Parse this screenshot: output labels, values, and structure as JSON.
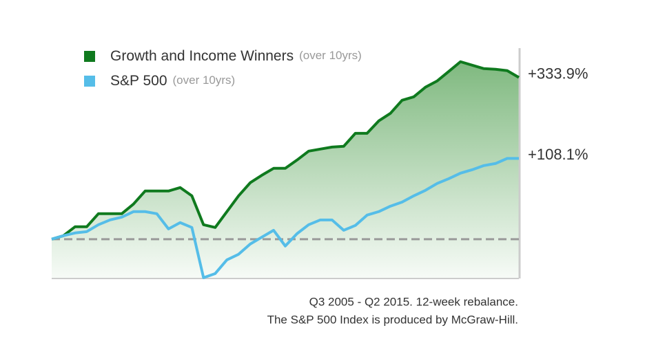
{
  "chart_data": {
    "type": "line",
    "log_scale": true,
    "reference_line": 0,
    "ylim": [
      -30,
      466
    ],
    "categories": [
      null,
      null,
      null,
      null,
      null,
      null,
      null,
      null,
      null,
      null,
      null,
      null,
      null,
      null,
      null,
      null,
      null,
      null,
      null,
      null,
      null,
      null,
      null,
      null,
      null,
      null,
      null,
      null,
      null,
      null,
      null,
      null,
      null,
      null,
      null,
      null,
      null,
      null,
      null,
      null,
      null
    ],
    "series": [
      {
        "name": "Growth and Income Winners",
        "name_note": "(over 10yrs)",
        "color": "#0f7a1e",
        "values": [
          0,
          3.2,
          11.9,
          11.9,
          26.0,
          26.0,
          26.0,
          37.5,
          54.8,
          54.8,
          54.8,
          59.7,
          48.2,
          14.0,
          11.2,
          28.4,
          48.2,
          66.9,
          78.7,
          90.2,
          90.2,
          105.0,
          122.3,
          126.5,
          130.7,
          132.2,
          161.4,
          161.4,
          192.4,
          213.3,
          252.7,
          263.9,
          297.1,
          320.2,
          358.4,
          400.4,
          384.8,
          370.0,
          367.1,
          361.3,
          333.9
        ],
        "value_labels": [
          null,
          null,
          null,
          null,
          null,
          null,
          null,
          null,
          null,
          null,
          null,
          null,
          null,
          null,
          null,
          null,
          null,
          null,
          null,
          null,
          null,
          null,
          null,
          null,
          null,
          null,
          null,
          null,
          null,
          null,
          null,
          null,
          null,
          null,
          null,
          null,
          null,
          null,
          null,
          null,
          "+333.9%"
        ]
      },
      {
        "name": "S&P 500",
        "name_note": "(over 10yrs)",
        "color": "#55bde8",
        "values": [
          0,
          3.2,
          5.8,
          7.1,
          14.0,
          19.1,
          22.1,
          28.4,
          28.4,
          26.0,
          9.8,
          16.2,
          11.2,
          -29.5,
          -26.8,
          -17.1,
          -12.8,
          -4.3,
          1.9,
          8.4,
          -6.0,
          5.1,
          14.0,
          19.1,
          19.1,
          8.4,
          13.3,
          24.4,
          28.4,
          34.9,
          40.0,
          48.2,
          55.8,
          65.8,
          73.2,
          82.0,
          87.8,
          95.0,
          98.7,
          108.1,
          108.1
        ],
        "value_labels": [
          null,
          null,
          null,
          null,
          null,
          null,
          null,
          null,
          null,
          null,
          null,
          null,
          null,
          null,
          null,
          null,
          null,
          null,
          null,
          null,
          null,
          null,
          null,
          null,
          null,
          null,
          null,
          null,
          null,
          null,
          null,
          null,
          null,
          null,
          null,
          null,
          null,
          null,
          null,
          null,
          "+108.1%"
        ]
      }
    ],
    "notes": [
      "Q3 2005 - Q2 2015. 12-week rebalance.",
      "The S&P 500 Index is produced by McGraw-Hill."
    ]
  }
}
